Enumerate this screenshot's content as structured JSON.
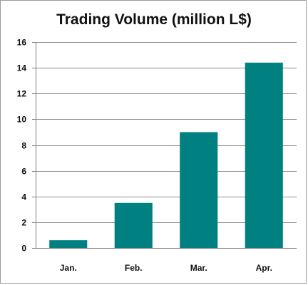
{
  "chart_data": {
    "type": "bar",
    "title": "Trading Volume (million L$)",
    "xlabel": "",
    "ylabel": "",
    "categories": [
      "Jan.",
      "Feb.",
      "Mar.",
      "Apr."
    ],
    "values": [
      0.6,
      3.5,
      9.0,
      14.4
    ],
    "ylim": [
      0,
      16
    ],
    "yticks": [
      0,
      2,
      4,
      6,
      8,
      10,
      12,
      14,
      16
    ],
    "grid": true,
    "legend": "none",
    "colors": {
      "bar": "#008080",
      "grid": "#8c8c8c",
      "axis": "#7f7f7f"
    }
  }
}
